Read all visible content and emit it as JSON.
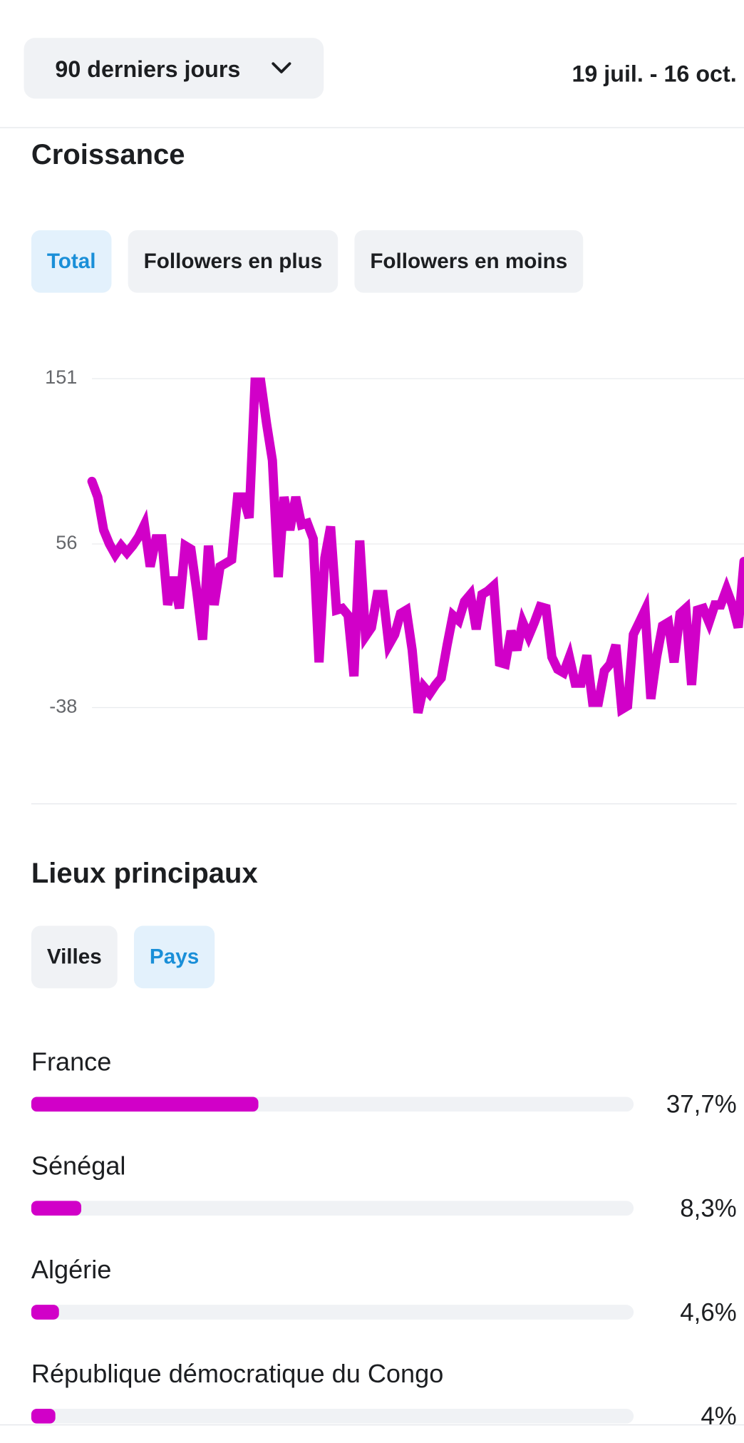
{
  "header": {
    "period": "90 derniers jours",
    "date_range": "19 juil. - 16 oct."
  },
  "chart_data": [
    {
      "type": "line",
      "title": "Croissance",
      "tabs": [
        {
          "label": "Total",
          "selected": true
        },
        {
          "label": "Followers en plus",
          "selected": false
        },
        {
          "label": "Followers en moins",
          "selected": false
        }
      ],
      "values": [
        92,
        83,
        64,
        56,
        50,
        55,
        51,
        55,
        60,
        67,
        43,
        59,
        59,
        21,
        37,
        19,
        55,
        53,
        29,
        1,
        55,
        21,
        43,
        45,
        47,
        83,
        83,
        71,
        149,
        149,
        125,
        104,
        37,
        83,
        64,
        83,
        67,
        68,
        59,
        -12,
        48,
        66,
        18,
        19,
        15,
        -20,
        58,
        3,
        8,
        27,
        27,
        -2,
        4,
        16,
        18,
        -5,
        -41,
        -26,
        -30,
        -25,
        -21,
        -2,
        15,
        12,
        23,
        27,
        7,
        27,
        29,
        32,
        -12,
        -13,
        6,
        -5,
        11,
        3,
        11,
        20,
        19,
        -9,
        -16,
        -18,
        -9,
        -24,
        -24,
        -8,
        -35,
        -35,
        -17,
        -13,
        -2,
        -39,
        -37,
        4,
        11,
        18,
        -33,
        -9,
        9,
        11,
        -12,
        16,
        19,
        -25,
        18,
        19,
        11,
        21,
        21,
        30,
        21,
        8,
        46
      ],
      "color": "#d100c8",
      "ylim": [
        -46,
        157
      ],
      "yticks": [
        -38,
        56,
        151
      ],
      "grid": true
    },
    {
      "type": "hbar",
      "title": "Lieux principaux",
      "tabs": [
        {
          "label": "Villes",
          "selected": false
        },
        {
          "label": "Pays",
          "selected": true
        }
      ],
      "categories": [
        "France",
        "Sénégal",
        "Algérie",
        "République démocratique du Congo"
      ],
      "values": [
        37.7,
        8.3,
        4.6,
        4
      ],
      "value_labels": [
        "37,7%",
        "8,3%",
        "4,6%",
        "4%"
      ],
      "xlim": [
        0,
        100
      ],
      "color": "#d100c8"
    }
  ]
}
